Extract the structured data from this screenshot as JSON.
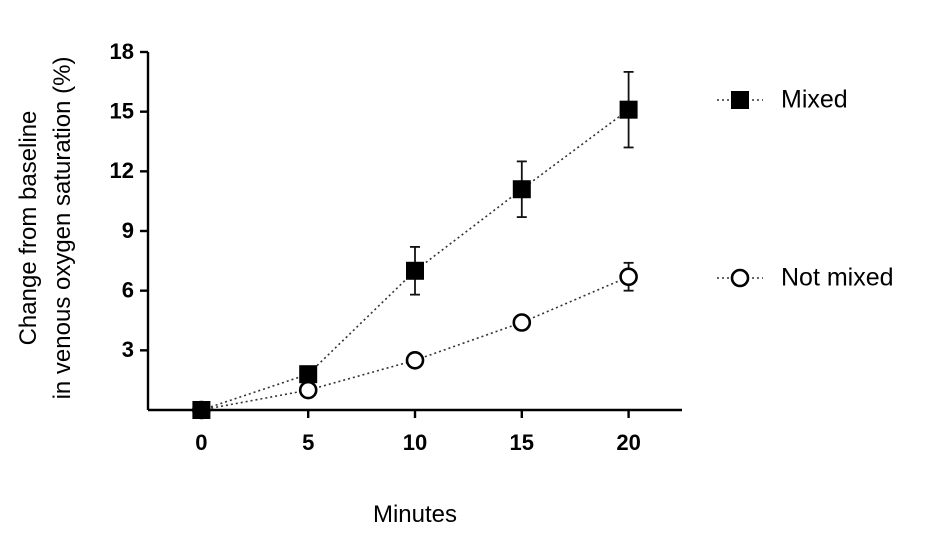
{
  "chart_data": {
    "type": "line",
    "title": "",
    "xlabel": "Minutes",
    "ylabel_line1": "Change from baseline",
    "ylabel_line2": "in venous oxygen saturation (%)",
    "x": [
      0,
      5,
      10,
      15,
      20
    ],
    "x_ticks": [
      "0",
      "5",
      "10",
      "15",
      "20"
    ],
    "xlim": [
      -2.5,
      22.5
    ],
    "ylim": [
      0,
      18
    ],
    "y_ticks": [
      "3",
      "6",
      "9",
      "12",
      "15",
      "18"
    ],
    "grid": false,
    "legend_position": "right",
    "series": [
      {
        "name": "Mixed",
        "marker": "filled-square",
        "color": "#000000",
        "values": [
          0,
          1.8,
          7.0,
          11.1,
          15.1
        ],
        "error": [
          0,
          0.3,
          1.2,
          1.4,
          1.9
        ]
      },
      {
        "name": "Not mixed",
        "marker": "open-circle",
        "color": "#000000",
        "values": [
          0,
          1.0,
          2.5,
          4.4,
          6.7
        ],
        "error": [
          0,
          0.2,
          0.2,
          0.3,
          0.7
        ]
      }
    ]
  }
}
